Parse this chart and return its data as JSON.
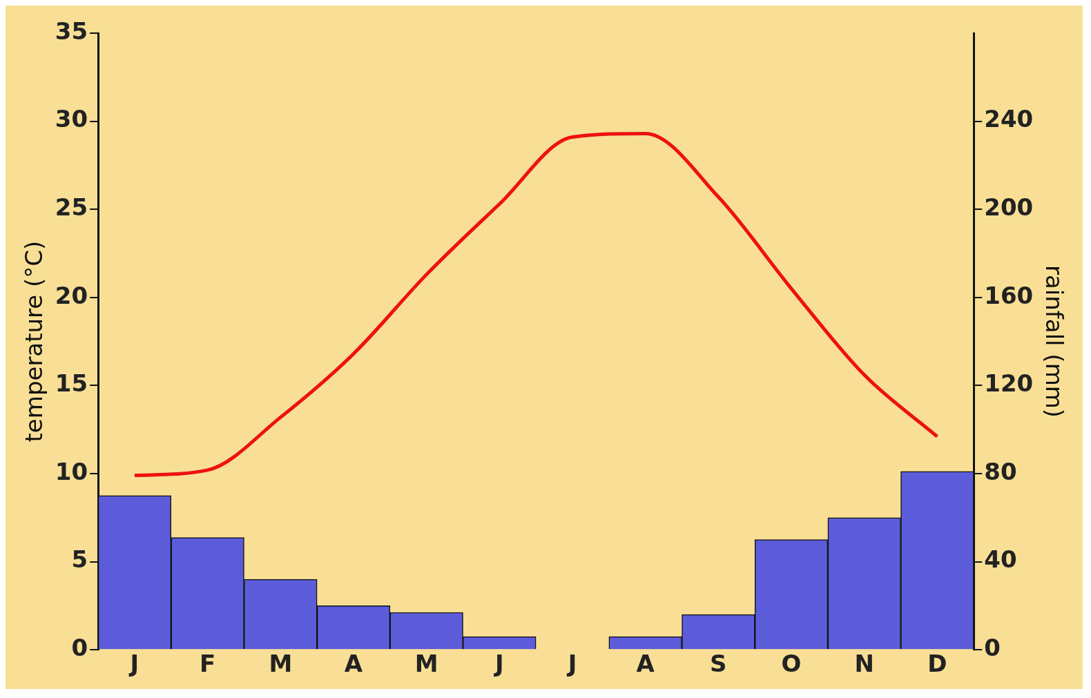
{
  "chart_data": {
    "type": "bar",
    "categories": [
      "J",
      "F",
      "M",
      "A",
      "M",
      "J",
      "J",
      "A",
      "S",
      "O",
      "N",
      "D"
    ],
    "ylabel": "temperature (°C)",
    "y2label": "rainfall (mm)",
    "ylim": [
      0,
      35
    ],
    "yticks": [
      0,
      5,
      10,
      15,
      20,
      25,
      30,
      35
    ],
    "y2lim": [
      0,
      280
    ],
    "y2ticks": [
      0,
      40,
      80,
      120,
      160,
      200,
      240
    ],
    "grid": false,
    "legend": false,
    "series": [
      {
        "type": "bar",
        "axis": "y2",
        "color": "#5c5cdb",
        "values": [
          70,
          51,
          32,
          20,
          17,
          6,
          0,
          6,
          16,
          50,
          60,
          81
        ]
      },
      {
        "type": "line",
        "axis": "y",
        "color": "#ee1111",
        "values": [
          9.9,
          10.2,
          13.2,
          16.8,
          21.3,
          25.3,
          29.1,
          29.3,
          25.7,
          20.5,
          15.6,
          12.1
        ]
      }
    ]
  }
}
